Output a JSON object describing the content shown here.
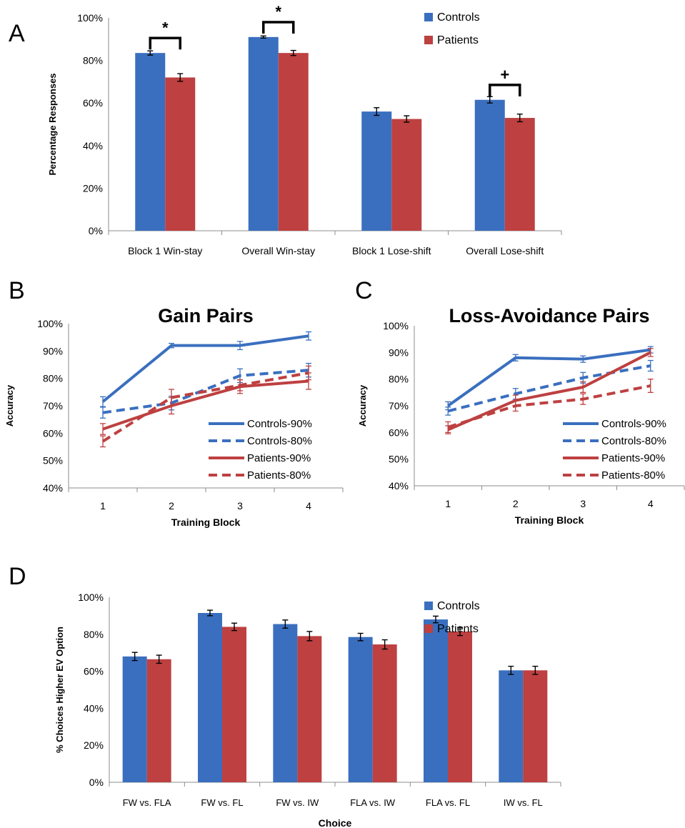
{
  "colors": {
    "controls": "#3A6FBF",
    "patients": "#BE4040",
    "axis": "#8c8c8c",
    "text": "#000000"
  },
  "panels": {
    "A": "A",
    "B": "B",
    "C": "C",
    "D": "D"
  },
  "chart_data": [
    {
      "id": "A",
      "type": "bar",
      "title": "",
      "xlabel": "",
      "ylabel": "Percentage Responses",
      "ylim": [
        0,
        100
      ],
      "yticks": [
        "0%",
        "20%",
        "40%",
        "60%",
        "80%",
        "100%"
      ],
      "categories": [
        "Block 1 Win-stay",
        "Overall Win-stay",
        "Block 1 Lose-shift",
        "Overall Lose-shift"
      ],
      "series": [
        {
          "name": "Controls",
          "values": [
            83.5,
            91,
            56,
            61.5
          ],
          "errors": [
            1,
            0.5,
            1.8,
            1.5
          ]
        },
        {
          "name": "Patients",
          "values": [
            72,
            83.5,
            52.5,
            53
          ],
          "errors": [
            1.8,
            1.2,
            1.5,
            1.8
          ]
        }
      ],
      "legend": "top-right",
      "annotations": [
        {
          "text": "*",
          "category": 0
        },
        {
          "text": "*",
          "category": 1
        },
        {
          "text": "+",
          "category": 3
        }
      ]
    },
    {
      "id": "B",
      "type": "line",
      "title": "Gain Pairs",
      "xlabel": "Training Block",
      "ylabel": "Accuracy",
      "ylim": [
        40,
        100
      ],
      "yticks": [
        "40%",
        "50%",
        "60%",
        "70%",
        "80%",
        "90%",
        "100%"
      ],
      "x": [
        "1",
        "2",
        "3",
        "4"
      ],
      "series": [
        {
          "name": "Controls-90%",
          "values": [
            71.5,
            92,
            92,
            95.5
          ],
          "errors": [
            1.8,
            0.8,
            1.5,
            1.5
          ]
        },
        {
          "name": "Controls-80%",
          "values": [
            67.5,
            71,
            81,
            83
          ],
          "errors": [
            2,
            2.5,
            2.5,
            2.5
          ]
        },
        {
          "name": "Patients-90%",
          "values": [
            61.5,
            70,
            77,
            79
          ],
          "errors": [
            2,
            3,
            2.5,
            3
          ]
        },
        {
          "name": "Patients-80%",
          "values": [
            57,
            73,
            77.5,
            82
          ],
          "errors": [
            2,
            3,
            2,
            2.5
          ]
        }
      ],
      "legend": "bottom-right"
    },
    {
      "id": "C",
      "type": "line",
      "title": "Loss-Avoidance Pairs",
      "xlabel": "Training Block",
      "ylabel": "Accuracy",
      "ylim": [
        40,
        100
      ],
      "yticks": [
        "40%",
        "50%",
        "60%",
        "70%",
        "80%",
        "90%",
        "100%"
      ],
      "x": [
        "1",
        "2",
        "3",
        "4"
      ],
      "series": [
        {
          "name": "Controls-90%",
          "values": [
            70,
            88,
            87.5,
            91
          ],
          "errors": [
            1.5,
            1.2,
            1.2,
            1.2
          ]
        },
        {
          "name": "Controls-80%",
          "values": [
            68,
            74.5,
            80.5,
            85
          ],
          "errors": [
            1.5,
            2,
            2,
            2
          ]
        },
        {
          "name": "Patients-90%",
          "values": [
            61,
            72,
            77,
            90
          ],
          "errors": [
            1.5,
            2,
            2,
            1.5
          ]
        },
        {
          "name": "Patients-80%",
          "values": [
            62,
            70,
            72.5,
            77.5
          ],
          "errors": [
            2,
            2,
            2,
            2.5
          ]
        }
      ],
      "legend": "bottom-right"
    },
    {
      "id": "D",
      "type": "bar",
      "title": "",
      "xlabel": "Choice",
      "ylabel": "% Choices Higher EV Option",
      "ylim": [
        0,
        100
      ],
      "yticks": [
        "0%",
        "20%",
        "40%",
        "60%",
        "80%",
        "100%"
      ],
      "categories": [
        "FW vs. FLA",
        "FW vs. FL",
        "FW vs. IW",
        "FLA vs. IW",
        "FLA vs. FL",
        "IW vs. FL"
      ],
      "series": [
        {
          "name": "Controls",
          "values": [
            68,
            91.5,
            85.5,
            78.5,
            88,
            60.5
          ],
          "errors": [
            2.2,
            1.5,
            2.2,
            2,
            1.8,
            2.2
          ]
        },
        {
          "name": "Patients",
          "values": [
            66.5,
            84,
            79,
            74.5,
            81.5,
            60.5
          ],
          "errors": [
            2.2,
            2,
            2.5,
            2.5,
            2.2,
            2.2
          ]
        }
      ],
      "legend": "top-right"
    }
  ]
}
